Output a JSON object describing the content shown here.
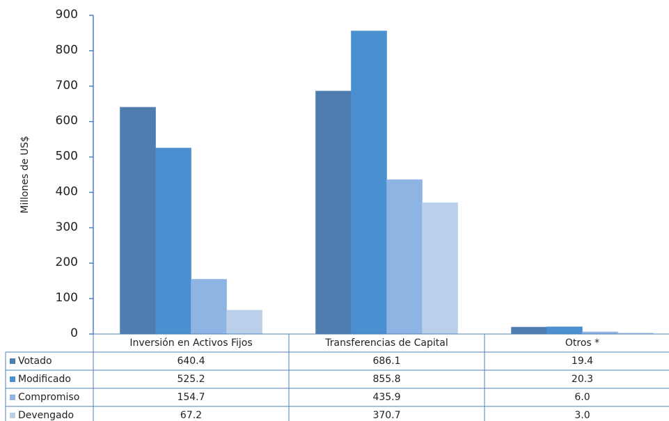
{
  "chart_data": {
    "type": "bar",
    "y_label": "Millones de  US$",
    "categories": [
      "Inversión en Activos Fijos",
      "Transferencias de Capital",
      "Otros *"
    ],
    "series": [
      {
        "name": "Votado",
        "color": "#4f7db0",
        "values": [
          640.4,
          686.1,
          19.4
        ],
        "value_labels": [
          "640.4",
          "686.1",
          "19.4"
        ]
      },
      {
        "name": "Modificado",
        "color": "#4a8fd0",
        "values": [
          525.2,
          855.8,
          20.3
        ],
        "value_labels": [
          "525.2",
          "855.8",
          "20.3"
        ]
      },
      {
        "name": "Compromiso",
        "color": "#8db4e3",
        "values": [
          154.7,
          435.9,
          6.0
        ],
        "value_labels": [
          "154.7",
          "435.9",
          "6.0"
        ]
      },
      {
        "name": "Devengado",
        "color": "#b9cfea",
        "values": [
          67.2,
          370.7,
          3.0
        ],
        "value_labels": [
          "67.2",
          "370.7",
          "3.0"
        ]
      }
    ],
    "ylim": [
      0,
      900
    ],
    "yticks": [
      0,
      100,
      200,
      300,
      400,
      500,
      600,
      700,
      800,
      900
    ],
    "grid": false
  }
}
